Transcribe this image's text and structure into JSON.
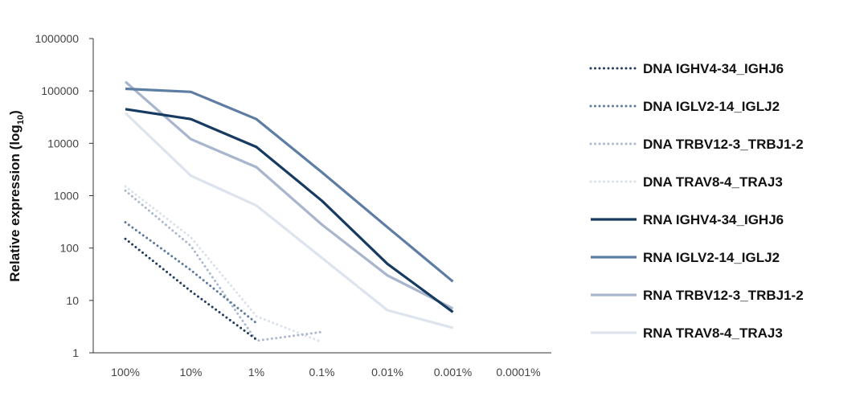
{
  "chart_data": {
    "type": "line",
    "y_scale": "log10",
    "ylabel": "Relative expression (log",
    "ylabel_sub": "10",
    "ylabel_close": ")",
    "xlabel": "",
    "title": "",
    "ylim": [
      1,
      1000000
    ],
    "y_ticks": [
      "1",
      "10",
      "100",
      "1000",
      "10000",
      "100000",
      "1000000"
    ],
    "categories": [
      "100%",
      "10%",
      "1%",
      "0.1%",
      "0.01%",
      "0.001%",
      "0.0001%"
    ],
    "legend_position": "right",
    "series": [
      {
        "name": "DNA IGHV4-34_IGHJ6",
        "style": "dotted",
        "color": "#1f3b5e",
        "values": [
          150,
          15,
          1.8,
          null,
          null,
          null,
          null
        ]
      },
      {
        "name": "DNA IGLV2-14_IGLJ2",
        "style": "dotted",
        "color": "#5c7a9e",
        "values": [
          310,
          38,
          3.7,
          null,
          null,
          null,
          null
        ]
      },
      {
        "name": "DNA TRBV12-3_TRBJ1-2",
        "style": "dotted",
        "color": "#a9b8cf",
        "values": [
          1250,
          110,
          1.7,
          2.5,
          null,
          null,
          null
        ]
      },
      {
        "name": "DNA TRAV8-4_TRAJ3",
        "style": "dotted",
        "color": "#d9e1ea",
        "values": [
          1500,
          160,
          5,
          1.6,
          null,
          null,
          null
        ]
      },
      {
        "name": "RNA IGHV4-34_IGHJ6",
        "style": "solid",
        "color": "#173a60",
        "values": [
          45000,
          29000,
          8500,
          800,
          50,
          6,
          null
        ]
      },
      {
        "name": "RNA IGLV2-14_IGLJ2",
        "style": "solid",
        "color": "#5e7da3",
        "values": [
          110000,
          96000,
          29000,
          2800,
          250,
          23,
          null
        ]
      },
      {
        "name": "RNA TRBV12-3_TRBJ1-2",
        "style": "solid",
        "color": "#a8b6cd",
        "values": [
          150000,
          12000,
          3500,
          280,
          30,
          7,
          null
        ]
      },
      {
        "name": "RNA TRAV8-4_TRAJ3",
        "style": "solid",
        "color": "#dde4ed",
        "values": [
          38000,
          2400,
          650,
          65,
          6.5,
          3,
          null
        ]
      }
    ]
  }
}
